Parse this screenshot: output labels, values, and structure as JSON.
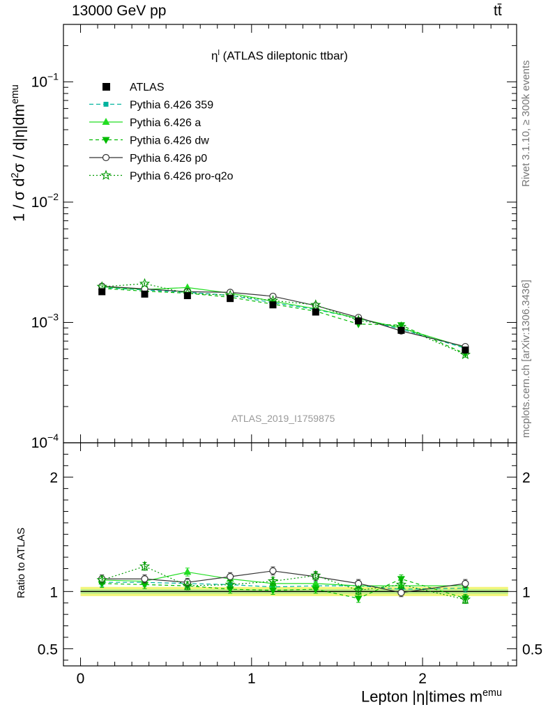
{
  "header": {
    "left": "13000 GeV pp",
    "right": "tt̄"
  },
  "side_labels": {
    "rivet": "Rivet 3.1.10, ≥ 300k events",
    "mcplots": "mcplots.cern.ch [arXiv:1306.3436]"
  },
  "watermark": "ATLAS_2019_I1759875",
  "chart_data": {
    "type": "line",
    "title": "η^l (ATLAS dileptonic ttbar)",
    "title_parts": {
      "main": "η",
      "sup": "l",
      "rest": " (ATLAS dileptonic ttbar)"
    },
    "ylabel": "1 / σ  d²σ / d|η|dm^emu",
    "ylabel_parts": {
      "a": "1 / σ  d",
      "sup1": "2",
      "b": "σ / d|η|dm",
      "sup2": "emu"
    },
    "xlabel": "Lepton |η|times m^emu",
    "xlabel_parts": {
      "main": "Lepton |η|times m",
      "sup": "emu"
    },
    "ratio_ylabel": "Ratio to ATLAS",
    "xlim": [
      -0.1,
      2.55
    ],
    "ylim_main": [
      0.0001,
      0.3
    ],
    "yscale_main": "log",
    "ylim_ratio": [
      0.35,
      2.3
    ],
    "x_ticks": [
      0,
      1,
      2
    ],
    "x_tick_labels": [
      "0",
      "1",
      "2"
    ],
    "main_y_ticks": [
      {
        "value": 0.0001,
        "base": "10",
        "exp": "−4"
      },
      {
        "value": 0.001,
        "base": "10",
        "exp": "−3"
      },
      {
        "value": 0.01,
        "base": "10",
        "exp": "−2"
      },
      {
        "value": 0.1,
        "base": "10",
        "exp": "−1"
      }
    ],
    "ratio_y_ticks": [
      0.5,
      1,
      2
    ],
    "ratio_y_tick_labels": [
      "0.5",
      "1",
      "2"
    ],
    "x": [
      0.125,
      0.375,
      0.625,
      0.875,
      1.125,
      1.375,
      1.625,
      1.875,
      2.25
    ],
    "data": {
      "name": "ATLAS",
      "values": [
        0.0018,
        0.00172,
        0.00167,
        0.00158,
        0.0014,
        0.00122,
        0.00103,
        0.00086,
        0.00059
      ],
      "band_rel": 0.04
    },
    "series": [
      {
        "name": "Pythia 6.426 359",
        "color": "#00b39e",
        "dash": "6,4",
        "marker": "square-small",
        "values": [
          0.00195,
          0.00186,
          0.00178,
          0.00168,
          0.00146,
          0.00128,
          0.00108,
          0.00088,
          0.00061
        ],
        "ratio": [
          1.08,
          1.08,
          1.07,
          1.06,
          1.04,
          1.05,
          1.05,
          1.02,
          1.03
        ]
      },
      {
        "name": "Pythia 6.426 a",
        "color": "#22dd22",
        "dash": "",
        "marker": "triangle-up",
        "values": [
          0.00198,
          0.00188,
          0.00195,
          0.00175,
          0.0015,
          0.0013,
          0.00108,
          0.0009,
          0.00062
        ],
        "ratio": [
          1.1,
          1.09,
          1.17,
          1.11,
          1.07,
          1.07,
          1.05,
          1.05,
          1.05
        ]
      },
      {
        "name": "Pythia 6.426 dw",
        "color": "#00bb00",
        "dash": "5,4",
        "marker": "triangle-down",
        "values": [
          0.00192,
          0.00182,
          0.00175,
          0.00162,
          0.00142,
          0.00124,
          0.00097,
          0.00095,
          0.00055
        ],
        "ratio": [
          1.07,
          1.06,
          1.05,
          1.02,
          1.01,
          1.02,
          0.94,
          1.11,
          0.94
        ]
      },
      {
        "name": "Pythia 6.426 p0",
        "color": "#333333",
        "dash": "",
        "marker": "circle-open",
        "values": [
          0.002,
          0.0019,
          0.0018,
          0.00178,
          0.00165,
          0.00138,
          0.0011,
          0.00085,
          0.00063
        ],
        "ratio": [
          1.11,
          1.11,
          1.08,
          1.13,
          1.18,
          1.13,
          1.07,
          0.99,
          1.07
        ]
      },
      {
        "name": "Pythia 6.426 pro-q2o",
        "color": "#009900",
        "dash": "2,3",
        "marker": "star-open",
        "values": [
          0.00198,
          0.0021,
          0.00175,
          0.00168,
          0.00152,
          0.0014,
          0.00104,
          0.00092,
          0.00054
        ],
        "ratio": [
          1.1,
          1.22,
          1.05,
          1.06,
          1.09,
          1.14,
          1.01,
          1.06,
          0.93
        ]
      }
    ]
  }
}
